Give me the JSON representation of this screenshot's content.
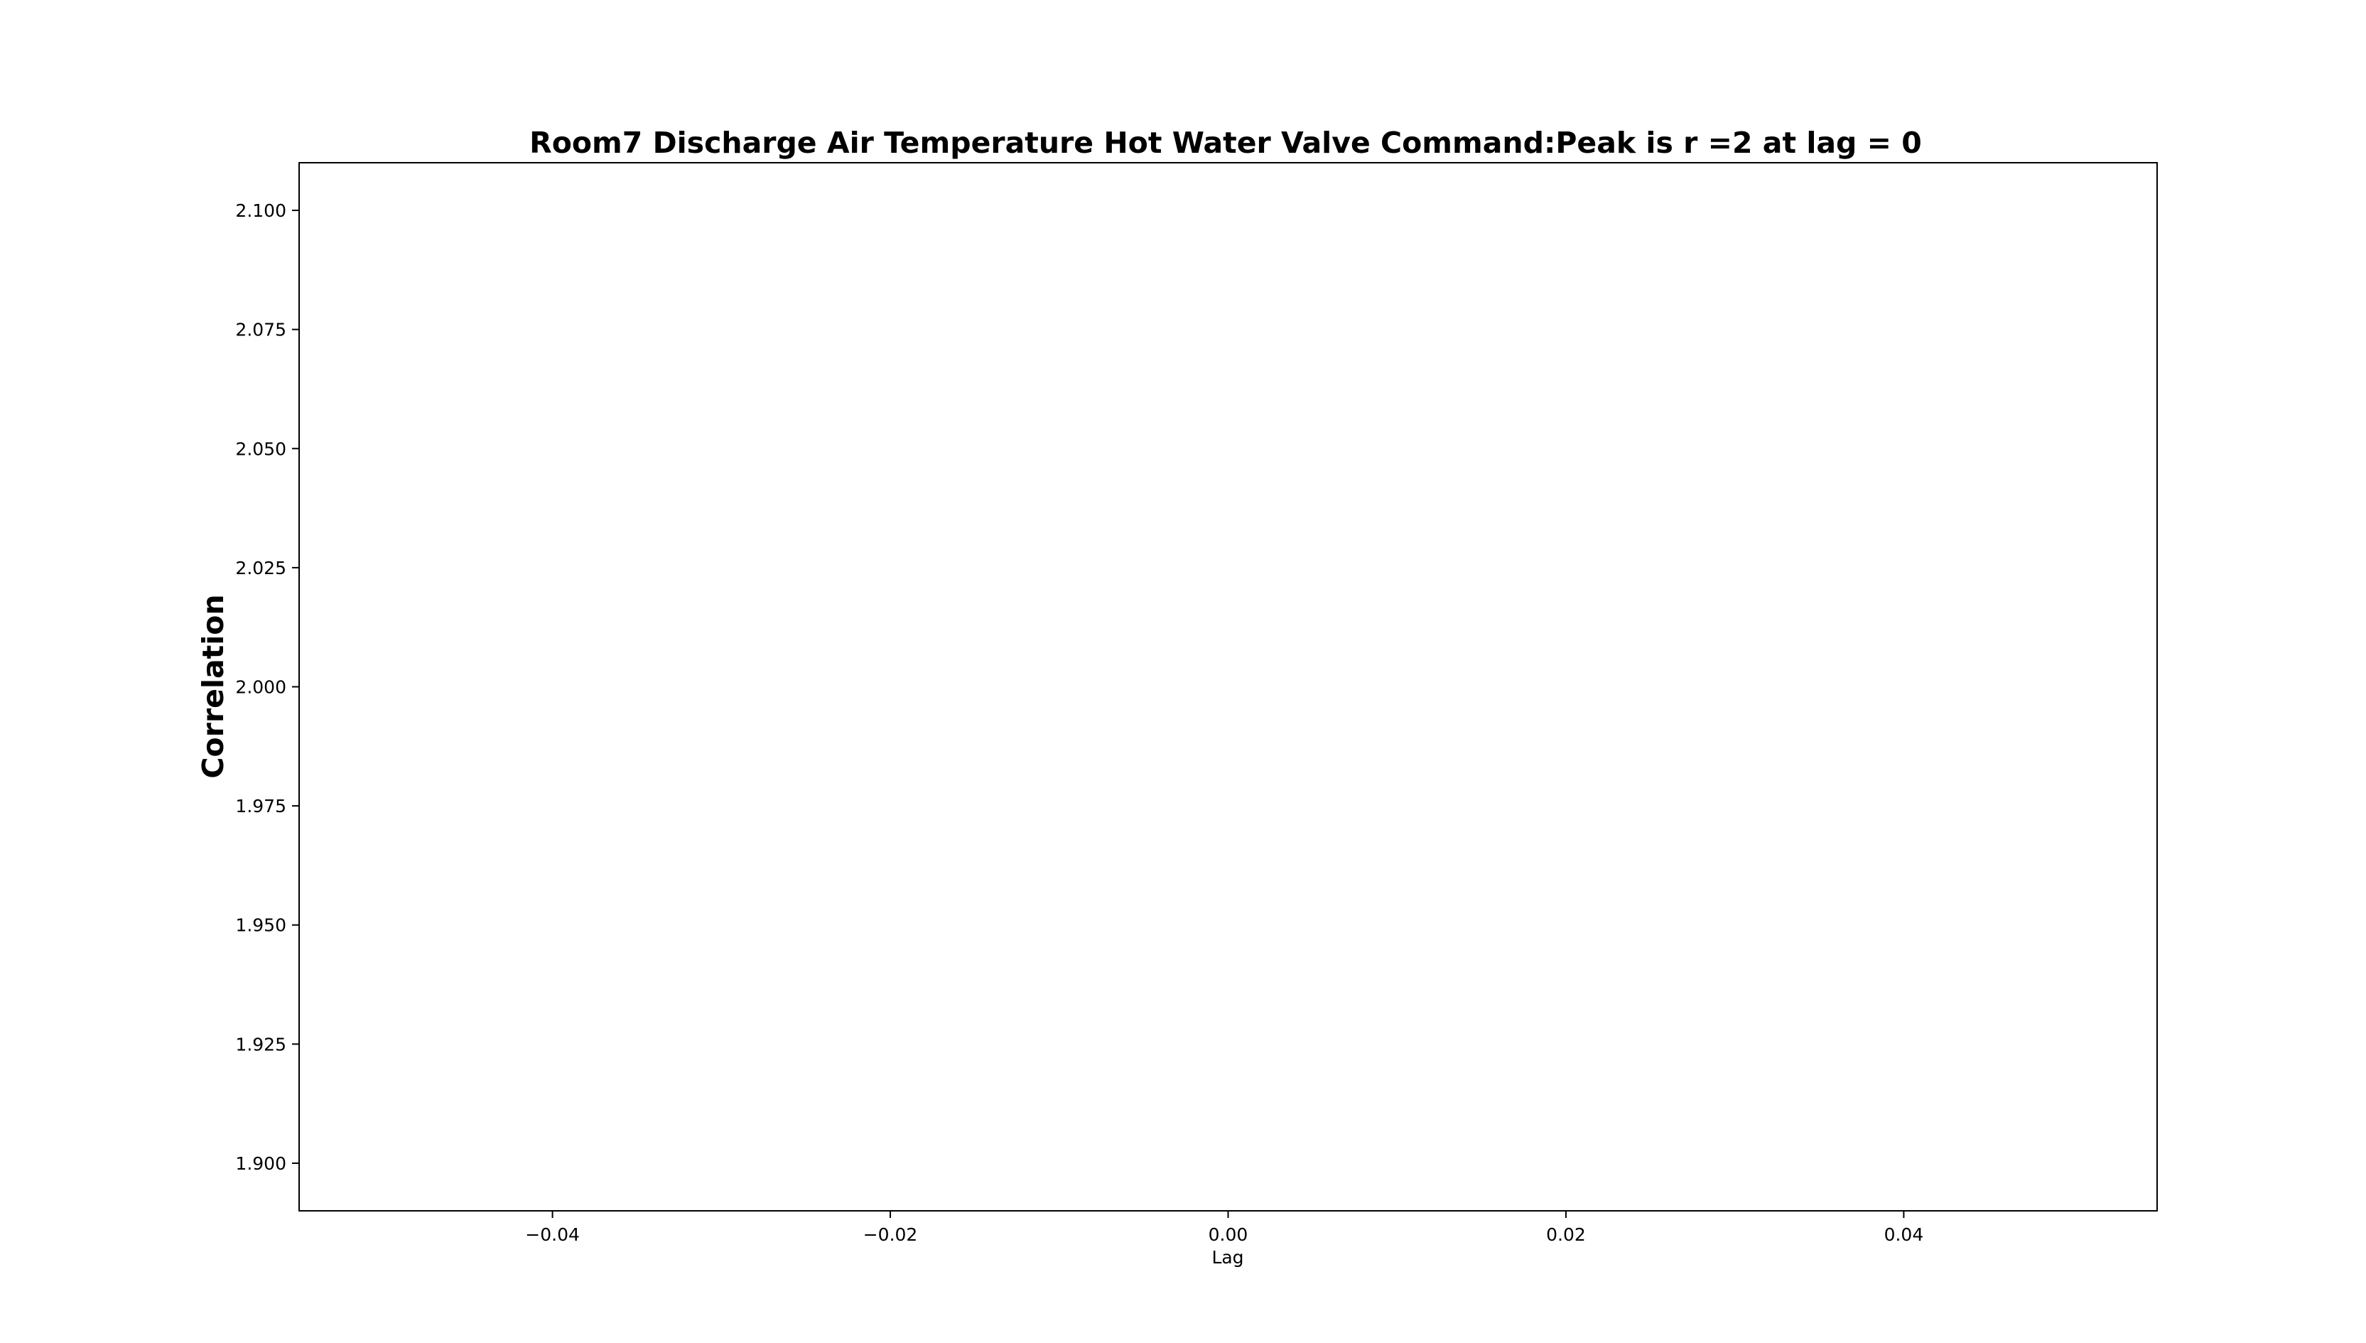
{
  "chart_data": {
    "type": "line",
    "title": "Room7 Discharge Air Temperature Hot Water Valve Command:Peak is r =2 at lag = 0",
    "xlabel": "Lag",
    "ylabel": "Correlation",
    "xlim": [
      -0.055,
      0.055
    ],
    "ylim": [
      1.89,
      2.11
    ],
    "xticks": [
      -0.04,
      -0.02,
      0.0,
      0.02,
      0.04
    ],
    "xtick_labels": [
      "−0.04",
      "−0.02",
      "0.00",
      "0.02",
      "0.04"
    ],
    "yticks": [
      2.1,
      2.075,
      2.05,
      2.025,
      2.0,
      1.975,
      1.95,
      1.925,
      1.9
    ],
    "ytick_labels": [
      "2.100",
      "2.075",
      "2.050",
      "2.025",
      "2.000",
      "1.975",
      "1.950",
      "1.925",
      "1.900"
    ],
    "series": [],
    "grid": false,
    "colors": {
      "frame": "#000000",
      "text": "#000000",
      "background": "#ffffff"
    }
  }
}
